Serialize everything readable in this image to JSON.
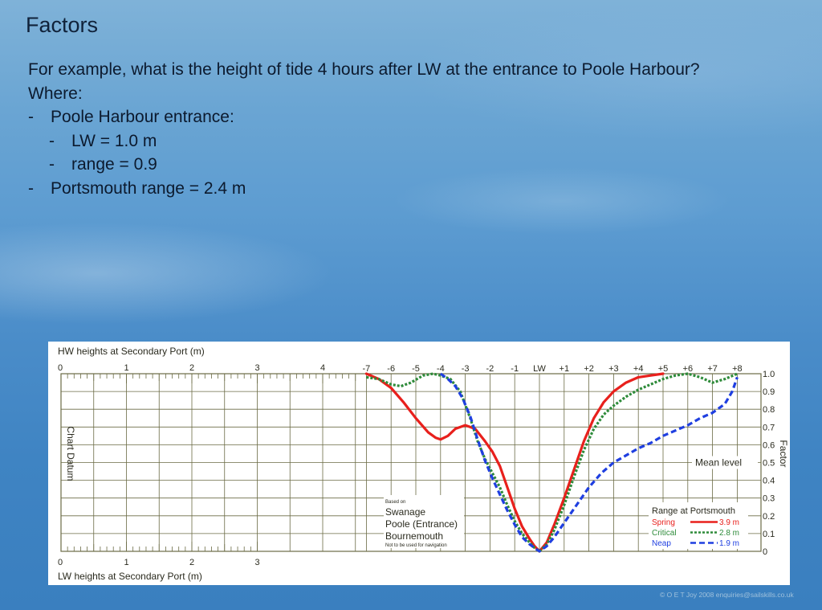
{
  "slide": {
    "title": "Factors",
    "bullets": [
      {
        "level": 0,
        "dash": "",
        "text": "For example, what is the height of tide 4 hours after LW at the entrance to Poole Harbour?"
      },
      {
        "level": 0,
        "dash": "",
        "text": "Where:"
      },
      {
        "level": 1,
        "dash": "-",
        "text": "Poole Harbour entrance:"
      },
      {
        "level": 2,
        "dash": "-",
        "text": "LW = 1.0 m"
      },
      {
        "level": 2,
        "dash": "-",
        "text": "range = 0.9"
      },
      {
        "level": 1,
        "dash": "-",
        "text": "Portsmouth range  = 2.4 m"
      }
    ],
    "copyright": "© O E T Joy 2008 enquiries@sailskills.co.uk"
  },
  "chart_data": {
    "type": "line",
    "top_scale_label": "HW heights at Secondary Port (m)",
    "top_scale_ticks": [
      "0",
      "1",
      "2",
      "3",
      "4"
    ],
    "bottom_scale_label": "LW heights at Secondary Port (m)",
    "bottom_scale_ticks": [
      "0",
      "1",
      "2",
      "3"
    ],
    "left_label": "Chart Datum",
    "right_label": "Factor",
    "hour_labels": [
      "-7",
      "-6",
      "-5",
      "-4",
      "-3",
      "-2",
      "-1",
      "LW",
      "+1",
      "+2",
      "+3",
      "+4",
      "+5",
      "+6",
      "+7",
      "+8"
    ],
    "hours": [
      -7,
      -6,
      -5,
      -4,
      -3,
      -2,
      -1,
      0,
      1,
      2,
      3,
      4,
      5,
      6,
      7,
      8
    ],
    "y_ticks": [
      "1.0",
      "0.9",
      "0.8",
      "0.7",
      "0.6",
      "0.5",
      "0.4",
      "0.3",
      "0.2",
      "0.1",
      "0"
    ],
    "ylim": [
      0,
      1
    ],
    "mean_level_label": "Mean level",
    "mean_level": 0.5,
    "source_note": {
      "based_on": "Based on",
      "ports": [
        "Swanage",
        "Poole (Entrance)",
        "Bournemouth"
      ],
      "warning": "Not to be used for navigation"
    },
    "legend": {
      "title": "Range at Portsmouth",
      "placement": "bottom-right"
    },
    "series": [
      {
        "name": "Spring",
        "range": "3.9 m",
        "color": "#e8201c",
        "style": "solid",
        "x": [
          -7,
          -6.5,
          -6,
          -5.5,
          -5,
          -4.5,
          -4.2,
          -4,
          -3.7,
          -3.4,
          -3,
          -2.6,
          -2.2,
          -1.9,
          -1.6,
          -1.3,
          -1,
          -0.7,
          -0.4,
          -0.2,
          0,
          0.3,
          0.6,
          1,
          1.4,
          1.8,
          2.2,
          2.6,
          3,
          3.5,
          4,
          4.5,
          5
        ],
        "y": [
          1.0,
          0.97,
          0.92,
          0.84,
          0.75,
          0.67,
          0.64,
          0.63,
          0.65,
          0.69,
          0.71,
          0.69,
          0.62,
          0.56,
          0.48,
          0.36,
          0.24,
          0.14,
          0.07,
          0.03,
          0.0,
          0.05,
          0.15,
          0.3,
          0.46,
          0.62,
          0.75,
          0.84,
          0.9,
          0.95,
          0.98,
          0.99,
          1.0
        ]
      },
      {
        "name": "Critical",
        "range": "2.8 m",
        "color": "#2e8b3a",
        "style": "dotted",
        "x": [
          -7,
          -6.5,
          -6,
          -5.6,
          -5.2,
          -4.7,
          -4.3,
          -4,
          -3.6,
          -3.2,
          -2.8,
          -2.5,
          -2.2,
          -1.9,
          -1.6,
          -1.3,
          -1,
          -0.7,
          -0.4,
          -0.2,
          0,
          0.3,
          0.6,
          1,
          1.4,
          1.8,
          2.2,
          2.6,
          3,
          3.5,
          4,
          4.5,
          5,
          5.5,
          6,
          6.5,
          7,
          7.5,
          8
        ],
        "y": [
          0.98,
          0.97,
          0.94,
          0.93,
          0.95,
          0.99,
          1.0,
          0.99,
          0.97,
          0.9,
          0.75,
          0.62,
          0.52,
          0.44,
          0.36,
          0.26,
          0.17,
          0.1,
          0.05,
          0.02,
          0.0,
          0.04,
          0.12,
          0.26,
          0.42,
          0.57,
          0.69,
          0.77,
          0.82,
          0.87,
          0.91,
          0.94,
          0.97,
          0.99,
          1.0,
          0.98,
          0.95,
          0.97,
          1.0
        ]
      },
      {
        "name": "Neap",
        "range": "1.9 m",
        "color": "#1f3fe0",
        "style": "dashed",
        "x": [
          -4,
          -3.7,
          -3.4,
          -3.1,
          -2.8,
          -2.5,
          -2.2,
          -1.9,
          -1.6,
          -1.3,
          -1,
          -0.7,
          -0.4,
          -0.2,
          0,
          0.3,
          0.6,
          1,
          1.5,
          2,
          2.5,
          3,
          3.5,
          4,
          4.5,
          5,
          5.5,
          6,
          6.5,
          7,
          7.5,
          7.8,
          8
        ],
        "y": [
          1.0,
          0.97,
          0.93,
          0.86,
          0.76,
          0.63,
          0.51,
          0.41,
          0.32,
          0.23,
          0.15,
          0.08,
          0.04,
          0.02,
          0.0,
          0.03,
          0.08,
          0.16,
          0.26,
          0.36,
          0.44,
          0.5,
          0.54,
          0.58,
          0.61,
          0.65,
          0.68,
          0.71,
          0.75,
          0.78,
          0.83,
          0.9,
          0.98
        ]
      }
    ]
  }
}
